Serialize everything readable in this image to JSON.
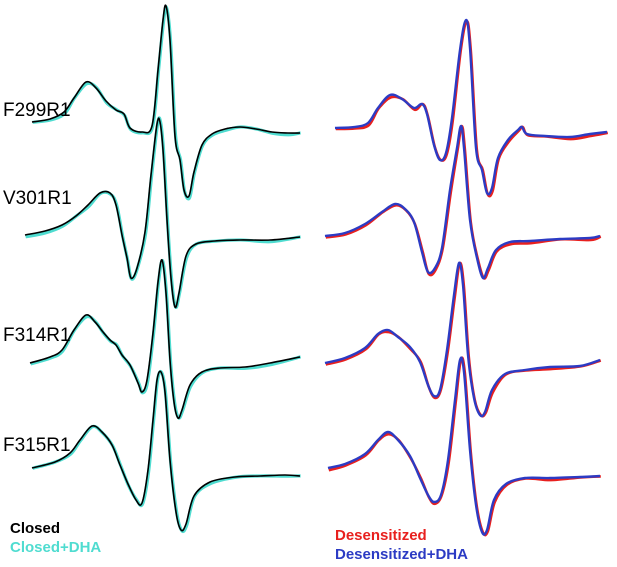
{
  "chart_data": {
    "type": "line",
    "rows": [
      "F299R1",
      "V301R1",
      "F314R1",
      "F315R1"
    ],
    "panels": [
      {
        "name": "closed-panel",
        "legend": [
          {
            "label": "Closed",
            "color": "#000000"
          },
          {
            "label": "Closed+DHA",
            "color": "#4fdcd0"
          }
        ],
        "series": [
          {
            "label": "Closed",
            "color": "#000000",
            "order": "back"
          },
          {
            "label": "Closed+DHA",
            "color": "#4fdcd0",
            "order": "back"
          }
        ]
      },
      {
        "name": "desensitized-panel",
        "legend": [
          {
            "label": "Desensitized",
            "color": "#e8201e"
          },
          {
            "label": "Desensitized+DHA",
            "color": "#2c3bc4"
          }
        ],
        "series": [
          {
            "label": "Desensitized",
            "color": "#e8201e"
          },
          {
            "label": "Desensitized+DHA",
            "color": "#2c3bc4"
          }
        ]
      }
    ],
    "axes": "none",
    "grid": false,
    "legend_position": "bottom-left of each panel"
  }
}
